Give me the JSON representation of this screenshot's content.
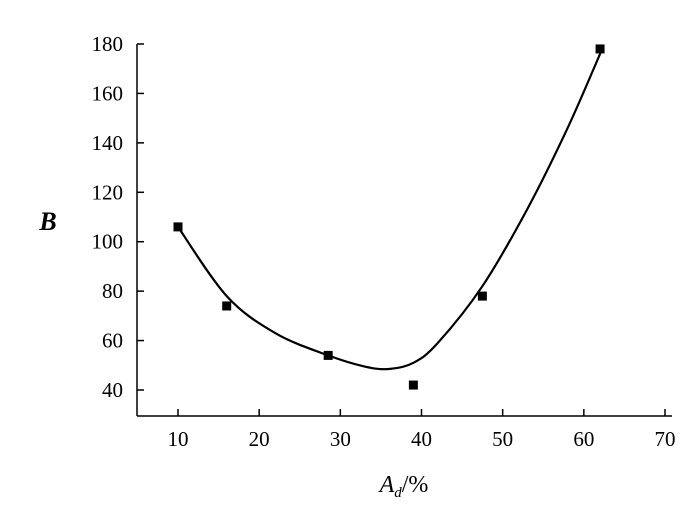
{
  "chart_data": {
    "type": "scatter",
    "title": "",
    "xlabel": {
      "main": "A",
      "subscript": "d",
      "suffix": "/%"
    },
    "ylabel": "B",
    "xlim": [
      5,
      70
    ],
    "ylim": [
      30,
      180
    ],
    "x_ticks": [
      10,
      20,
      30,
      40,
      50,
      60,
      70
    ],
    "y_ticks": [
      40,
      60,
      80,
      100,
      120,
      140,
      160,
      180
    ],
    "grid": false,
    "legend": "none",
    "series": [
      {
        "marker": "square",
        "color": "#000000",
        "points": [
          {
            "x": 10.0,
            "y": 106
          },
          {
            "x": 16.0,
            "y": 74
          },
          {
            "x": 28.5,
            "y": 54
          },
          {
            "x": 39.0,
            "y": 42
          },
          {
            "x": 47.5,
            "y": 78
          },
          {
            "x": 62.0,
            "y": 178
          }
        ]
      }
    ],
    "fit_curve": {
      "style": "smooth",
      "color": "#000000",
      "points": [
        {
          "x": 10.0,
          "y": 106
        },
        {
          "x": 16.0,
          "y": 78
        },
        {
          "x": 22.0,
          "y": 63
        },
        {
          "x": 28.5,
          "y": 54
        },
        {
          "x": 33.0,
          "y": 49.5
        },
        {
          "x": 36.0,
          "y": 48.5
        },
        {
          "x": 39.0,
          "y": 51
        },
        {
          "x": 42.0,
          "y": 59
        },
        {
          "x": 47.5,
          "y": 82
        },
        {
          "x": 53.0,
          "y": 113
        },
        {
          "x": 58.0,
          "y": 146
        },
        {
          "x": 62.0,
          "y": 176
        }
      ]
    }
  }
}
